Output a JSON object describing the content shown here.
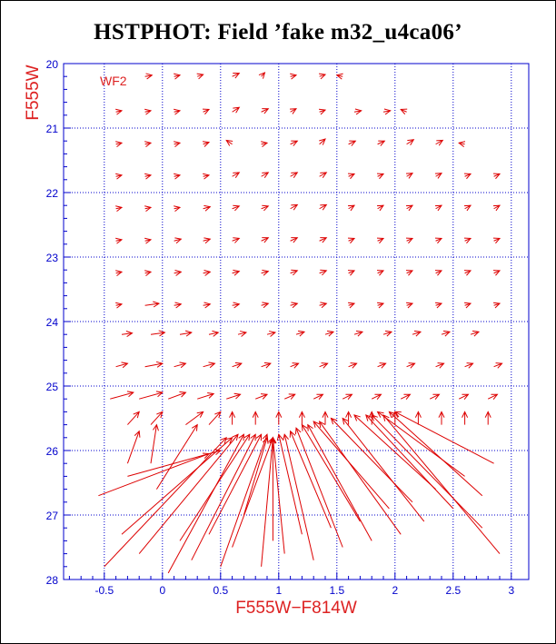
{
  "chart_data": {
    "type": "scatter",
    "title": "HSTPHOT: Field ’fake m32_u4ca06’",
    "xlabel": "F555W−F814W",
    "ylabel": "F555W",
    "panel_label": "WF2",
    "xlim": [
      -0.85,
      3.15
    ],
    "ylim": [
      28,
      20
    ],
    "x_ticks": [
      -0.5,
      0,
      0.5,
      1,
      1.5,
      2,
      2.5,
      3
    ],
    "x_tick_labels": [
      "-0.5",
      "0",
      "0.5",
      "1",
      "1.5",
      "2",
      "2.5",
      "3"
    ],
    "y_ticks": [
      20,
      21,
      22,
      23,
      24,
      25,
      26,
      27,
      28
    ],
    "y_tick_labels": [
      "20",
      "21",
      "22",
      "23",
      "24",
      "25",
      "26",
      "27",
      "28"
    ],
    "grid": "dotted",
    "colors": {
      "axis": "#0000cc",
      "grid": "#0000cc",
      "arrow": "#dd0000",
      "label": "#dd2222",
      "title": "#000000"
    },
    "rows": [
      {
        "y": 20.2,
        "x": [
          -0.15,
          0.1,
          0.3,
          0.6,
          0.85,
          1.1,
          1.35,
          1.55
        ],
        "dx": [
          0.06,
          0.05,
          0.05,
          0.06,
          0.03,
          0.05,
          0.05,
          -0.05
        ],
        "dy": [
          -0.02,
          -0.02,
          -0.03,
          -0.05,
          -0.06,
          -0.02,
          -0.03,
          -0.02
        ]
      },
      {
        "y": 20.75,
        "x": [
          -0.4,
          -0.15,
          0.1,
          0.35,
          0.6,
          0.85,
          1.1,
          1.35,
          1.65,
          1.9,
          2.1
        ],
        "dx": [
          0.05,
          0.05,
          0.05,
          0.05,
          0.06,
          0.06,
          0.05,
          0.05,
          0.06,
          0.06,
          -0.05
        ],
        "dy": [
          -0.02,
          -0.02,
          -0.02,
          -0.04,
          -0.07,
          -0.05,
          -0.05,
          -0.03,
          -0.02,
          -0.02,
          -0.04
        ]
      },
      {
        "y": 21.25,
        "x": [
          -0.4,
          -0.15,
          0.1,
          0.35,
          0.6,
          0.85,
          1.1,
          1.35,
          1.6,
          1.85,
          2.1,
          2.35,
          2.6
        ],
        "dx": [
          0.05,
          0.05,
          0.05,
          0.05,
          -0.05,
          0.05,
          0.06,
          0.05,
          0.06,
          0.06,
          0.06,
          0.06,
          -0.05
        ],
        "dy": [
          -0.02,
          -0.02,
          -0.02,
          -0.03,
          -0.06,
          -0.02,
          -0.05,
          -0.08,
          -0.05,
          -0.05,
          -0.07,
          -0.06,
          -0.02
        ]
      },
      {
        "y": 21.75,
        "x": [
          -0.4,
          -0.15,
          0.1,
          0.35,
          0.6,
          0.85,
          1.1,
          1.35,
          1.6,
          1.85,
          2.1,
          2.35,
          2.6,
          2.85
        ],
        "dx": [
          0.05,
          0.05,
          0.05,
          0.05,
          0.06,
          0.06,
          0.06,
          0.06,
          0.05,
          0.05,
          0.05,
          0.05,
          0.05,
          0.05
        ],
        "dy": [
          -0.02,
          -0.02,
          -0.02,
          -0.02,
          -0.06,
          -0.06,
          -0.06,
          -0.06,
          -0.04,
          -0.04,
          -0.05,
          -0.05,
          -0.04,
          -0.04
        ]
      },
      {
        "y": 22.25,
        "x": [
          -0.4,
          -0.15,
          0.1,
          0.35,
          0.6,
          0.85,
          1.1,
          1.35,
          1.6,
          1.85,
          2.1,
          2.35,
          2.6,
          2.85
        ],
        "dx": [
          0.05,
          0.05,
          0.05,
          0.06,
          0.06,
          0.06,
          0.06,
          0.06,
          0.05,
          0.05,
          0.05,
          0.05,
          0.05,
          0.05
        ],
        "dy": [
          -0.02,
          -0.02,
          -0.02,
          -0.03,
          -0.04,
          -0.04,
          -0.06,
          -0.06,
          -0.05,
          -0.05,
          -0.05,
          -0.05,
          -0.05,
          -0.05
        ]
      },
      {
        "y": 22.75,
        "x": [
          -0.4,
          -0.15,
          0.1,
          0.35,
          0.6,
          0.85,
          1.1,
          1.35,
          1.6,
          1.85,
          2.1,
          2.35,
          2.6,
          2.85
        ],
        "dx": [
          0.05,
          0.05,
          0.06,
          0.06,
          0.06,
          0.06,
          0.06,
          0.06,
          0.05,
          0.05,
          0.05,
          0.05,
          0.05,
          0.05
        ],
        "dy": [
          -0.02,
          -0.02,
          -0.03,
          -0.03,
          -0.04,
          -0.05,
          -0.05,
          -0.05,
          -0.04,
          -0.04,
          -0.04,
          -0.04,
          -0.04,
          -0.04
        ]
      },
      {
        "y": 23.25,
        "x": [
          -0.4,
          -0.15,
          0.1,
          0.35,
          0.6,
          0.85,
          1.1,
          1.35,
          1.6,
          1.85,
          2.1,
          2.35,
          2.6,
          2.85
        ],
        "dx": [
          0.05,
          0.05,
          0.06,
          0.06,
          0.06,
          0.06,
          0.06,
          0.06,
          0.05,
          0.05,
          0.05,
          0.05,
          0.05,
          0.05
        ],
        "dy": [
          -0.02,
          -0.02,
          -0.02,
          -0.02,
          -0.03,
          -0.03,
          -0.04,
          -0.04,
          -0.04,
          -0.04,
          -0.04,
          -0.04,
          -0.04,
          -0.04
        ]
      },
      {
        "y": 23.75,
        "x": [
          -0.4,
          -0.15,
          0.1,
          0.35,
          0.6,
          0.85,
          1.1,
          1.35,
          1.6,
          1.85,
          2.1,
          2.35,
          2.6,
          2.85
        ],
        "dx": [
          0.05,
          0.12,
          0.06,
          0.06,
          0.06,
          0.06,
          0.06,
          0.06,
          0.05,
          0.05,
          0.05,
          0.05,
          0.05,
          0.05
        ],
        "dy": [
          -0.02,
          -0.03,
          -0.02,
          -0.02,
          -0.02,
          -0.03,
          -0.03,
          -0.03,
          -0.03,
          -0.03,
          -0.03,
          -0.03,
          -0.03,
          -0.03
        ]
      },
      {
        "y": 24.2,
        "x": [
          -0.35,
          -0.1,
          0.15,
          0.4,
          0.65,
          0.9,
          1.15,
          1.4,
          1.65,
          1.9,
          2.15,
          2.4,
          2.65
        ],
        "dx": [
          0.09,
          0.12,
          0.1,
          0.08,
          0.07,
          0.07,
          0.07,
          0.07,
          0.07,
          0.07,
          0.07,
          0.07,
          0.07
        ],
        "dy": [
          -0.02,
          -0.03,
          -0.03,
          -0.03,
          -0.03,
          -0.03,
          -0.04,
          -0.04,
          -0.04,
          -0.04,
          -0.04,
          -0.04,
          -0.04
        ]
      },
      {
        "y": 24.7,
        "x": [
          -0.4,
          -0.15,
          0.1,
          0.35,
          0.6,
          0.85,
          1.1,
          1.35,
          1.6,
          1.85,
          2.1,
          2.35,
          2.6,
          2.85
        ],
        "dx": [
          0.1,
          0.15,
          0.1,
          0.1,
          0.08,
          0.08,
          0.07,
          0.07,
          0.07,
          0.07,
          0.07,
          0.07,
          0.07,
          0.07
        ],
        "dy": [
          -0.05,
          -0.05,
          -0.05,
          -0.05,
          -0.05,
          -0.05,
          -0.05,
          -0.05,
          -0.05,
          -0.05,
          -0.05,
          -0.05,
          -0.05,
          -0.05
        ]
      },
      {
        "y": 25.2,
        "x": [
          -0.45,
          -0.2,
          0.05,
          0.3,
          0.55,
          0.8,
          1.05,
          1.3,
          1.55,
          1.8,
          2.05,
          2.3,
          2.55,
          2.8
        ],
        "dx": [
          0.2,
          0.2,
          0.15,
          0.14,
          0.12,
          0.1,
          0.09,
          0.08,
          0.08,
          0.08,
          0.08,
          0.08,
          0.08,
          0.08
        ],
        "dy": [
          -0.1,
          -0.1,
          -0.1,
          -0.08,
          -0.07,
          -0.07,
          -0.07,
          -0.07,
          -0.07,
          -0.07,
          -0.07,
          -0.07,
          -0.07,
          -0.07
        ]
      },
      {
        "y": 25.6,
        "x": [
          -0.3,
          -0.1,
          0.2,
          0.4,
          0.6,
          0.8,
          1.0,
          1.2,
          1.4,
          1.6,
          1.8,
          2.0,
          2.2,
          2.4,
          2.6,
          2.8
        ],
        "dx": [
          0.1,
          0.1,
          0.15,
          0.1,
          0.0,
          0.0,
          0.0,
          0.0,
          0.0,
          0.0,
          0.0,
          0.0,
          0.0,
          0.0,
          0.0,
          0.0
        ],
        "dy": [
          -0.2,
          -0.2,
          -0.2,
          -0.2,
          -0.2,
          -0.2,
          -0.2,
          -0.2,
          -0.2,
          -0.2,
          -0.2,
          -0.2,
          -0.2,
          -0.2,
          -0.2,
          -0.2
        ]
      }
    ],
    "long_arrows": [
      {
        "x0": -0.3,
        "y0": 26.2,
        "x1": -0.2,
        "y1": 25.7
      },
      {
        "x0": -0.1,
        "y0": 26.2,
        "x1": -0.05,
        "y1": 25.6
      },
      {
        "x0": -0.05,
        "y0": 26.6,
        "x1": 0.3,
        "y1": 25.6
      },
      {
        "x0": -0.5,
        "y0": 27.8,
        "x1": 0.55,
        "y1": 25.8
      },
      {
        "x0": -0.35,
        "y0": 27.3,
        "x1": 0.6,
        "y1": 25.8
      },
      {
        "x0": -0.2,
        "y0": 27.6,
        "x1": 0.65,
        "y1": 25.75
      },
      {
        "x0": 0.05,
        "y0": 27.9,
        "x1": 0.7,
        "y1": 25.75
      },
      {
        "x0": 0.15,
        "y0": 27.4,
        "x1": 0.75,
        "y1": 25.75
      },
      {
        "x0": 0.25,
        "y0": 27.7,
        "x1": 0.8,
        "y1": 25.75
      },
      {
        "x0": 0.4,
        "y0": 27.3,
        "x1": 0.85,
        "y1": 25.75
      },
      {
        "x0": 0.5,
        "y0": 27.8,
        "x1": 0.9,
        "y1": 25.75
      },
      {
        "x0": 0.6,
        "y0": 27.5,
        "x1": 0.95,
        "y1": 25.8
      },
      {
        "x0": 0.7,
        "y0": 27.0,
        "x1": 0.9,
        "y1": 25.8
      },
      {
        "x0": 0.85,
        "y0": 27.8,
        "x1": 0.95,
        "y1": 25.8
      },
      {
        "x0": 0.95,
        "y0": 27.4,
        "x1": 0.95,
        "y1": 25.8
      },
      {
        "x0": 1.05,
        "y0": 27.6,
        "x1": 0.95,
        "y1": 25.8
      },
      {
        "x0": 1.2,
        "y0": 27.3,
        "x1": 1.0,
        "y1": 25.75
      },
      {
        "x0": 1.3,
        "y0": 27.7,
        "x1": 1.05,
        "y1": 25.75
      },
      {
        "x0": 1.45,
        "y0": 27.2,
        "x1": 1.1,
        "y1": 25.7
      },
      {
        "x0": 1.55,
        "y0": 27.5,
        "x1": 1.15,
        "y1": 25.65
      },
      {
        "x0": 1.7,
        "y0": 27.1,
        "x1": 1.2,
        "y1": 25.6
      },
      {
        "x0": 1.8,
        "y0": 27.4,
        "x1": 1.25,
        "y1": 25.6
      },
      {
        "x0": 1.95,
        "y0": 26.9,
        "x1": 1.3,
        "y1": 25.55
      },
      {
        "x0": 2.05,
        "y0": 27.3,
        "x1": 1.35,
        "y1": 25.55
      },
      {
        "x0": 2.15,
        "y0": 26.8,
        "x1": 1.45,
        "y1": 25.5
      },
      {
        "x0": 2.25,
        "y0": 27.1,
        "x1": 1.55,
        "y1": 25.5
      },
      {
        "x0": 2.35,
        "y0": 26.6,
        "x1": 1.65,
        "y1": 25.45
      },
      {
        "x0": 2.5,
        "y0": 26.9,
        "x1": 1.75,
        "y1": 25.45
      },
      {
        "x0": 2.6,
        "y0": 26.4,
        "x1": 1.85,
        "y1": 25.4
      },
      {
        "x0": 2.75,
        "y0": 26.7,
        "x1": 1.95,
        "y1": 25.4
      },
      {
        "x0": 2.85,
        "y0": 26.2,
        "x1": 2.0,
        "y1": 25.4
      },
      {
        "x0": 2.9,
        "y0": 27.6,
        "x1": 1.9,
        "y1": 25.45
      },
      {
        "x0": 2.75,
        "y0": 27.2,
        "x1": 1.8,
        "y1": 25.45
      },
      {
        "x0": -0.55,
        "y0": 26.7,
        "x1": 0.4,
        "y1": 26.05
      },
      {
        "x0": -0.3,
        "y0": 26.4,
        "x1": 0.5,
        "y1": 26.0
      }
    ]
  }
}
